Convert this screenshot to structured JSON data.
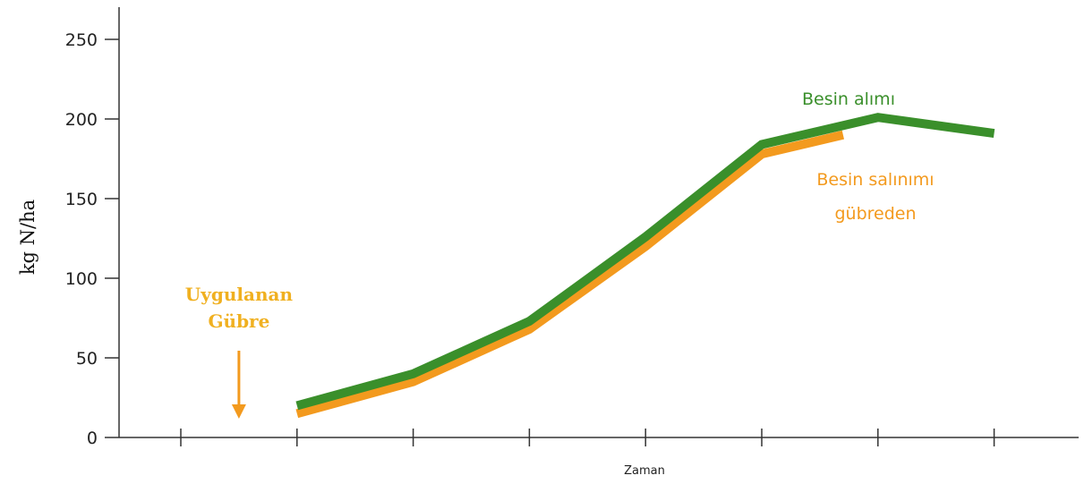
{
  "chart_data": {
    "type": "line",
    "title": "",
    "xlabel": "Zaman",
    "ylabel": "kg N/ha",
    "ylim": [
      0,
      250
    ],
    "yticks": [
      "0",
      "50",
      "100",
      "150",
      "200",
      "250"
    ],
    "x_tick_count": 8,
    "grid": false,
    "series": [
      {
        "name": "Besin salınımı gübreden",
        "label_lines": [
          "Besin salınımı",
          "gübreden"
        ],
        "color": "#f39a1e",
        "x": [
          1,
          2,
          3,
          4,
          5,
          5.7
        ],
        "values": [
          15,
          35,
          68,
          120,
          178,
          190
        ]
      },
      {
        "name": "Besin alımı",
        "label_lines": [
          "Besin alımı"
        ],
        "color": "#3a8f2b",
        "x": [
          1,
          2,
          3,
          4,
          5,
          6,
          7
        ],
        "values": [
          20,
          40,
          73,
          126,
          184,
          201,
          191
        ]
      }
    ],
    "annotation": {
      "lines": [
        "Uygulanan",
        "Gübre"
      ],
      "color": "#f0b020",
      "arrow_color": "#f39a1e",
      "x": 0.5
    }
  }
}
